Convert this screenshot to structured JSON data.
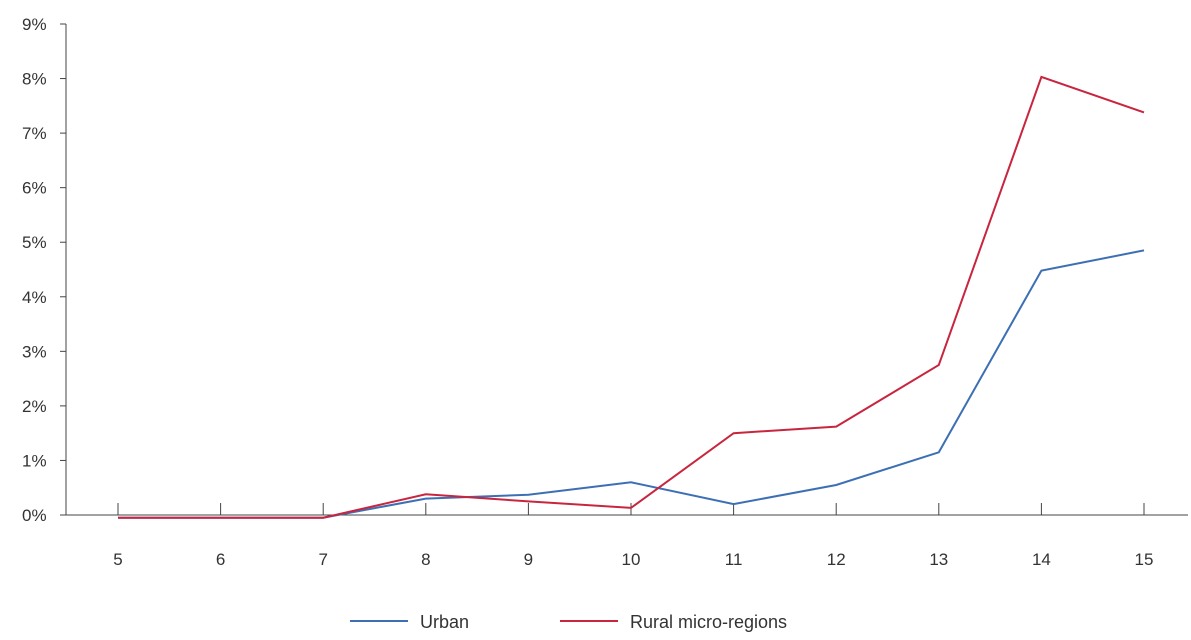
{
  "chart_data": {
    "type": "line",
    "categories": [
      "5",
      "6",
      "7",
      "8",
      "9",
      "10",
      "11",
      "12",
      "13",
      "14",
      "15"
    ],
    "series": [
      {
        "name": "Urban",
        "color": "#3d6fb5",
        "values": [
          -0.05,
          -0.05,
          -0.05,
          0.3,
          0.37,
          0.6,
          0.2,
          0.55,
          1.15,
          4.48,
          4.85
        ]
      },
      {
        "name": "Rural micro-regions",
        "color": "#c8253e",
        "values": [
          -0.05,
          -0.05,
          -0.05,
          0.38,
          0.25,
          0.13,
          1.5,
          1.62,
          2.75,
          8.03,
          7.38
        ]
      }
    ],
    "ylim": [
      0,
      9
    ],
    "yticks": [
      0,
      1,
      2,
      3,
      4,
      5,
      6,
      7,
      8,
      9
    ],
    "ytick_labels": [
      "0%",
      "1%",
      "2%",
      "3%",
      "4%",
      "5%",
      "6%",
      "7%",
      "8%",
      "9%"
    ],
    "title": "",
    "xlabel": "",
    "ylabel": "",
    "grid": false,
    "legend_position": "bottom-center"
  }
}
